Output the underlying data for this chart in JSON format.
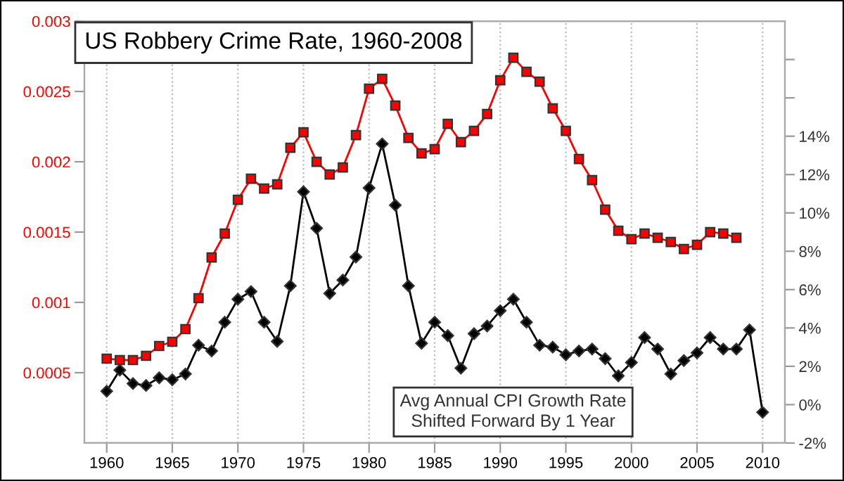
{
  "chart_data": {
    "type": "line",
    "title": "US Robbery Crime Rate, 1960-2008",
    "annotations": [
      "Avg Annual CPI Growth Rate\nShifted Forward By 1 Year"
    ],
    "x": [
      1960,
      1961,
      1962,
      1963,
      1964,
      1965,
      1966,
      1967,
      1968,
      1969,
      1970,
      1971,
      1972,
      1973,
      1974,
      1975,
      1976,
      1977,
      1978,
      1979,
      1980,
      1981,
      1982,
      1983,
      1984,
      1985,
      1986,
      1987,
      1988,
      1989,
      1990,
      1991,
      1992,
      1993,
      1994,
      1995,
      1996,
      1997,
      1998,
      1999,
      2000,
      2001,
      2002,
      2003,
      2004,
      2005,
      2006,
      2007,
      2008,
      2009,
      2010
    ],
    "series": [
      {
        "color": "#ff0000",
        "marker": "square",
        "x": [
          1960,
          1961,
          1962,
          1963,
          1964,
          1965,
          1966,
          1967,
          1968,
          1969,
          1970,
          1971,
          1972,
          1973,
          1974,
          1975,
          1976,
          1977,
          1978,
          1979,
          1980,
          1981,
          1982,
          1983,
          1984,
          1985,
          1986,
          1987,
          1988,
          1989,
          1990,
          1991,
          1992,
          1993,
          1994,
          1995,
          1996,
          1997,
          1998,
          1999,
          2000,
          2001,
          2002,
          2003,
          2004,
          2005,
          2006,
          2007,
          2008
        ],
        "values": [
          0.0006,
          0.00059,
          0.00059,
          0.00062,
          0.00069,
          0.00072,
          0.00081,
          0.00103,
          0.00132,
          0.00149,
          0.00173,
          0.00188,
          0.00181,
          0.00184,
          0.0021,
          0.00221,
          0.002,
          0.00191,
          0.00196,
          0.00219,
          0.00252,
          0.00259,
          0.0024,
          0.00217,
          0.00206,
          0.00209,
          0.00227,
          0.00214,
          0.00222,
          0.00234,
          0.00258,
          0.00274,
          0.00264,
          0.00257,
          0.00238,
          0.00222,
          0.00202,
          0.00187,
          0.00166,
          0.00151,
          0.00145,
          0.00149,
          0.00146,
          0.00143,
          0.00138,
          0.00141,
          0.0015,
          0.00149,
          0.00146
        ]
      },
      {
        "color": "#000000",
        "marker": "diamond",
        "axis": "y2",
        "values": [
          0.7,
          1.8,
          1.1,
          1.0,
          1.4,
          1.3,
          1.6,
          3.1,
          2.8,
          4.3,
          5.5,
          5.9,
          4.3,
          3.3,
          6.2,
          11.1,
          9.2,
          5.8,
          6.5,
          7.7,
          11.3,
          13.6,
          10.4,
          6.2,
          3.2,
          4.3,
          3.6,
          1.9,
          3.7,
          4.1,
          4.9,
          5.5,
          4.3,
          3.1,
          3.0,
          2.6,
          2.8,
          2.9,
          2.4,
          1.5,
          2.2,
          3.5,
          2.9,
          1.6,
          2.3,
          2.7,
          3.5,
          2.9,
          2.9,
          3.9,
          -0.4
        ]
      }
    ],
    "xlim": [
      1958.3,
      2011.7
    ],
    "xticks": [
      1960,
      1965,
      1970,
      1975,
      1980,
      1985,
      1990,
      1995,
      2000,
      2005,
      2010
    ],
    "ylim": [
      0,
      0.003
    ],
    "yticks": [
      0.0005,
      0.001,
      0.0015,
      0.002,
      0.0025,
      0.003
    ],
    "y2lim": [
      -2,
      20
    ],
    "y2ticks": [
      {
        "value": -2,
        "label": "-2%"
      },
      {
        "value": 0,
        "label": "0%"
      },
      {
        "value": 2,
        "label": "2%"
      },
      {
        "value": 4,
        "label": "4%"
      },
      {
        "value": 6,
        "label": "6%"
      },
      {
        "value": 8,
        "label": "8%"
      },
      {
        "value": 10,
        "label": "10%"
      },
      {
        "value": 12,
        "label": "12%"
      },
      {
        "value": 14,
        "label": "14%"
      },
      {
        "value": 16,
        "label": null
      },
      {
        "value": 18,
        "label": null
      }
    ],
    "grid": "x",
    "legend": false
  }
}
